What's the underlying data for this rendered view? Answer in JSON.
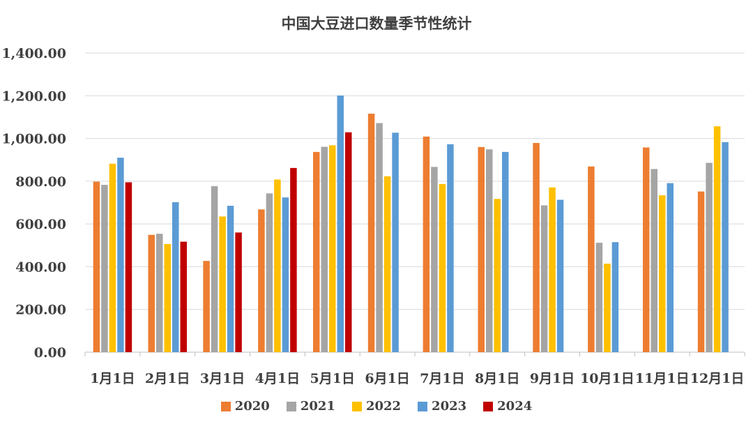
{
  "chart_data": {
    "type": "bar",
    "title": "中国大豆进口数量季节性统计",
    "xlabel": "",
    "ylabel": "",
    "ylim": [
      0,
      1400
    ],
    "yticks": [
      "0.00",
      "200.00",
      "400.00",
      "600.00",
      "800.00",
      "1,000.00",
      "1,200.00",
      "1,400.00"
    ],
    "ytick_values": [
      0,
      200,
      400,
      600,
      800,
      1000,
      1200,
      1400
    ],
    "grid": true,
    "legend_position": "bottom",
    "categories": [
      "1月1日",
      "2月1日",
      "3月1日",
      "4月1日",
      "5月1日",
      "6月1日",
      "7月1日",
      "8月1日",
      "9月1日",
      "10月1日",
      "11月1日",
      "12月1日"
    ],
    "series": [
      {
        "name": "2020",
        "color": "#ED7D31",
        "values": [
          798,
          549,
          427,
          668,
          937,
          1116,
          1009,
          960,
          979,
          869,
          958,
          752
        ]
      },
      {
        "name": "2021",
        "color": "#A5A5A5",
        "values": [
          783,
          554,
          777,
          743,
          961,
          1072,
          867,
          949,
          687,
          512,
          857,
          886
        ]
      },
      {
        "name": "2022",
        "color": "#FFC000",
        "values": [
          882,
          506,
          635,
          808,
          968,
          823,
          787,
          717,
          771,
          414,
          734,
          1057
        ]
      },
      {
        "name": "2023",
        "color": "#5B9BD5",
        "values": [
          910,
          702,
          685,
          724,
          1201,
          1027,
          973,
          937,
          713,
          515,
          791,
          983
        ]
      },
      {
        "name": "2024",
        "color": "#C00000",
        "values": [
          795,
          517,
          560,
          862,
          1029,
          null,
          null,
          null,
          null,
          null,
          null,
          null
        ]
      }
    ]
  }
}
